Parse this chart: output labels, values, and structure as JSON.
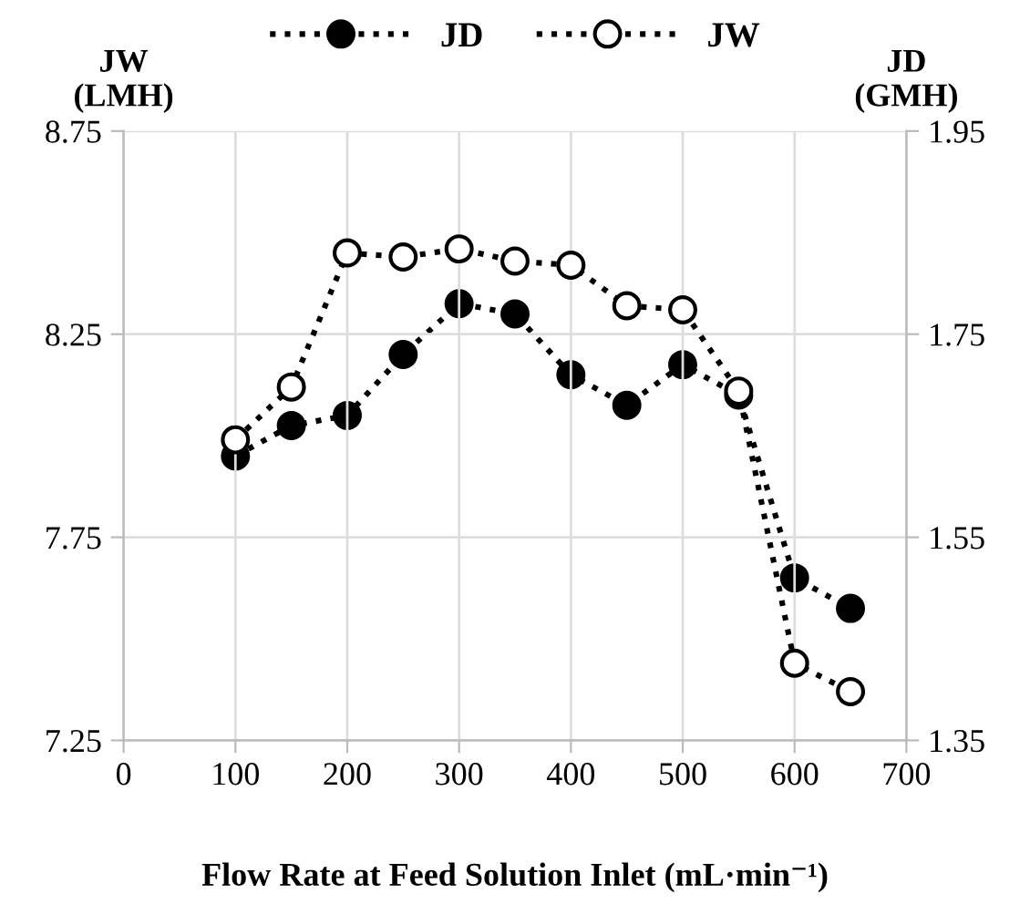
{
  "chart_data": {
    "type": "line",
    "xlabel": "Flow Rate at Feed Solution Inlet (mL·min⁻¹)",
    "ylabel": "JW\n(LMH)",
    "y2label": "JD\n(GMH)",
    "x": [
      100,
      150,
      200,
      250,
      300,
      350,
      400,
      450,
      500,
      550,
      600,
      650
    ],
    "series": [
      {
        "name": "JD",
        "color": "#000000",
        "axis": "y2",
        "marker": "circle",
        "values": [
          1.63,
          1.66,
          1.67,
          1.73,
          1.78,
          1.77,
          1.71,
          1.68,
          1.72,
          1.69,
          1.51,
          1.48
        ]
      },
      {
        "name": "JW",
        "color": "#000000",
        "marker": "circle",
        "values": [
          7.99,
          8.12,
          8.45,
          8.44,
          8.46,
          8.43,
          8.42,
          8.32,
          8.31,
          8.11,
          7.44,
          7.37
        ]
      }
    ],
    "xlim": [
      0,
      700
    ],
    "xticks": [
      0,
      100,
      200,
      300,
      400,
      500,
      600,
      700
    ],
    "ylim": [
      7.25,
      8.75
    ],
    "yticks": [
      7.25,
      7.75,
      8.25,
      8.75
    ],
    "y2lim": [
      1.35,
      1.95
    ],
    "y2ticks": [
      1.35,
      1.55,
      1.75,
      1.95
    ],
    "grid": true,
    "legend": "top",
    "line_style": "dotted"
  }
}
